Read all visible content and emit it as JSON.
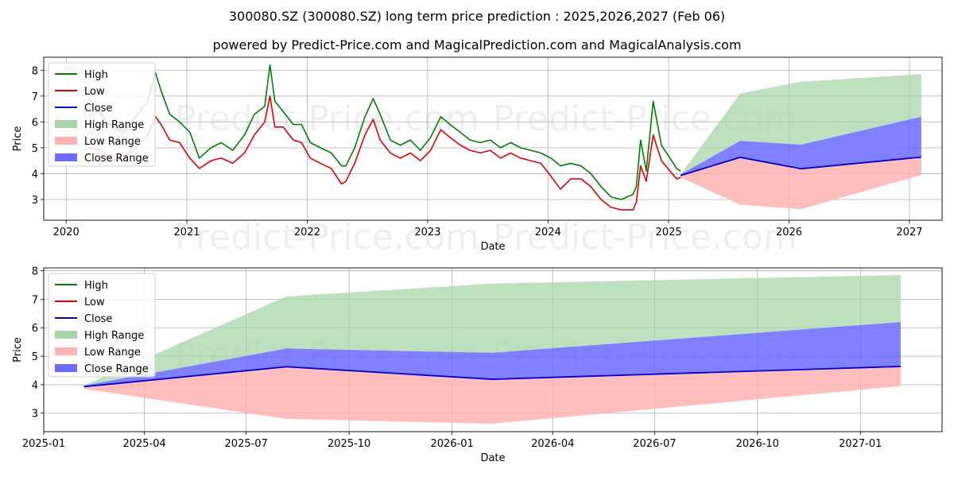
{
  "title_line1": "300080.SZ (300080.SZ) long term price prediction : 2025,2026,2027 (Feb 06)",
  "title_line2": "powered by Predict-Price.com and MagicalPrediction.com and MagicalAnalysis.com",
  "watermark": "Predict-Price.com",
  "colors": {
    "high": "#008000",
    "low": "#dd0000",
    "close": "#0000cc",
    "high_range": "#a8d5a8",
    "low_range": "#ffb3b3",
    "close_range": "#6b6bff"
  },
  "chart_data": [
    {
      "type": "line",
      "xlabel": "Date",
      "ylabel": "Price",
      "x_ticks": [
        "2020",
        "2021",
        "2022",
        "2023",
        "2024",
        "2025",
        "2026",
        "2027"
      ],
      "y_ticks": [
        3,
        4,
        5,
        6,
        7,
        8
      ],
      "xlim": [
        "2019-10-25",
        "2027-04-10"
      ],
      "ylim": [
        2.2,
        8.5
      ],
      "grid": true,
      "legend_position": "upper-left",
      "legend": [
        "High",
        "Low",
        "Close",
        "High Range",
        "Low Range",
        "Close Range"
      ],
      "history": {
        "dates": [
          "2020-03-10",
          "2020-04-15",
          "2020-05-20",
          "2020-06-25",
          "2020-07-30",
          "2020-09-04",
          "2020-09-28",
          "2020-10-15",
          "2020-11-10",
          "2020-12-10",
          "2021-01-10",
          "2021-02-08",
          "2021-03-15",
          "2021-04-15",
          "2021-05-20",
          "2021-06-25",
          "2021-07-25",
          "2021-08-25",
          "2021-09-10",
          "2021-09-25",
          "2021-10-20",
          "2021-11-20",
          "2021-12-15",
          "2022-01-10",
          "2022-02-10",
          "2022-03-15",
          "2022-04-15",
          "2022-04-28",
          "2022-05-25",
          "2022-06-25",
          "2022-07-20",
          "2022-08-10",
          "2022-09-10",
          "2022-10-10",
          "2022-11-10",
          "2022-12-10",
          "2023-01-10",
          "2023-02-10",
          "2023-03-10",
          "2023-04-10",
          "2023-05-10",
          "2023-06-10",
          "2023-07-10",
          "2023-08-10",
          "2023-09-10",
          "2023-10-10",
          "2023-11-10",
          "2023-12-10",
          "2024-01-10",
          "2024-02-08",
          "2024-03-10",
          "2024-04-10",
          "2024-05-10",
          "2024-06-10",
          "2024-07-10",
          "2024-08-10",
          "2024-09-15",
          "2024-09-25",
          "2024-10-08",
          "2024-10-25",
          "2024-11-15",
          "2024-12-10",
          "2025-01-05",
          "2025-01-25",
          "2025-02-06"
        ],
        "high": [
          6.9,
          6.3,
          5.8,
          5.6,
          6.2,
          6.8,
          7.9,
          7.2,
          6.3,
          6.0,
          5.6,
          4.6,
          5.0,
          5.2,
          4.9,
          5.5,
          6.3,
          6.6,
          8.2,
          6.8,
          6.4,
          5.9,
          5.9,
          5.2,
          5.0,
          4.8,
          4.3,
          4.3,
          5.0,
          6.2,
          6.9,
          6.3,
          5.3,
          5.1,
          5.3,
          4.9,
          5.4,
          6.2,
          5.9,
          5.6,
          5.3,
          5.2,
          5.3,
          5.0,
          5.2,
          5.0,
          4.9,
          4.8,
          4.6,
          4.3,
          4.4,
          4.3,
          4.0,
          3.5,
          3.1,
          3.0,
          3.2,
          3.5,
          5.3,
          4.1,
          6.8,
          5.1,
          4.6,
          4.2,
          4.1
        ],
        "low": [
          5.0,
          4.9,
          4.5,
          4.6,
          5.0,
          5.5,
          6.2,
          5.9,
          5.3,
          5.2,
          4.6,
          4.2,
          4.5,
          4.6,
          4.4,
          4.8,
          5.5,
          6.0,
          7.0,
          5.8,
          5.8,
          5.3,
          5.2,
          4.6,
          4.4,
          4.2,
          3.6,
          3.7,
          4.4,
          5.5,
          6.1,
          5.3,
          4.8,
          4.6,
          4.8,
          4.5,
          4.9,
          5.7,
          5.4,
          5.1,
          4.9,
          4.8,
          4.9,
          4.6,
          4.8,
          4.6,
          4.5,
          4.4,
          3.9,
          3.4,
          3.8,
          3.8,
          3.5,
          3.0,
          2.7,
          2.6,
          2.6,
          2.9,
          4.3,
          3.7,
          5.5,
          4.5,
          4.1,
          3.8,
          3.85
        ],
        "close": [
          5.8,
          5.5,
          5.1,
          5.1,
          5.6,
          6.1,
          7.0,
          6.5,
          5.8,
          5.6,
          5.1,
          4.4,
          4.7,
          4.9,
          4.6,
          5.1,
          5.9,
          6.3,
          7.6,
          6.3,
          6.1,
          5.6,
          5.5,
          4.9,
          4.7,
          4.5,
          3.9,
          4.0,
          4.7,
          5.8,
          6.5,
          5.8,
          5.0,
          4.9,
          5.0,
          4.7,
          5.2,
          6.0,
          5.7,
          5.4,
          5.1,
          5.0,
          5.1,
          4.8,
          5.0,
          4.8,
          4.7,
          4.6,
          4.2,
          3.8,
          4.1,
          4.0,
          3.7,
          3.2,
          2.9,
          2.8,
          2.9,
          3.2,
          4.8,
          3.9,
          6.1,
          4.8,
          4.3,
          4.0,
          3.95
        ]
      },
      "forecast": {
        "dates": [
          "2025-02-06",
          "2025-08-06",
          "2026-02-06",
          "2027-02-06"
        ],
        "high": [
          3.97,
          7.1,
          7.55,
          7.85
        ],
        "low": [
          3.85,
          2.8,
          2.63,
          3.95
        ],
        "close": [
          3.93,
          4.63,
          4.19,
          4.64
        ],
        "close_upper": [
          3.97,
          5.27,
          5.12,
          6.2
        ]
      }
    },
    {
      "type": "line",
      "xlabel": "Date",
      "ylabel": "Price",
      "x_ticks": [
        "2025-01",
        "2025-04",
        "2025-07",
        "2025-10",
        "2026-01",
        "2026-04",
        "2026-07",
        "2026-10",
        "2027-01"
      ],
      "y_ticks": [
        3,
        4,
        5,
        6,
        7,
        8
      ],
      "xlim": [
        "2025-01-01",
        "2027-03-15"
      ],
      "ylim": [
        2.35,
        8.1
      ],
      "grid": true,
      "legend_position": "upper-left",
      "legend": [
        "High",
        "Low",
        "Close",
        "High Range",
        "Low Range",
        "Close Range"
      ],
      "forecast": {
        "dates": [
          "2025-02-06",
          "2025-08-06",
          "2026-02-06",
          "2027-02-06"
        ],
        "high": [
          3.97,
          7.1,
          7.55,
          7.85
        ],
        "low": [
          3.85,
          2.8,
          2.63,
          3.95
        ],
        "close": [
          3.93,
          4.63,
          4.19,
          4.64
        ],
        "close_upper": [
          3.97,
          5.27,
          5.12,
          6.2
        ]
      }
    }
  ]
}
